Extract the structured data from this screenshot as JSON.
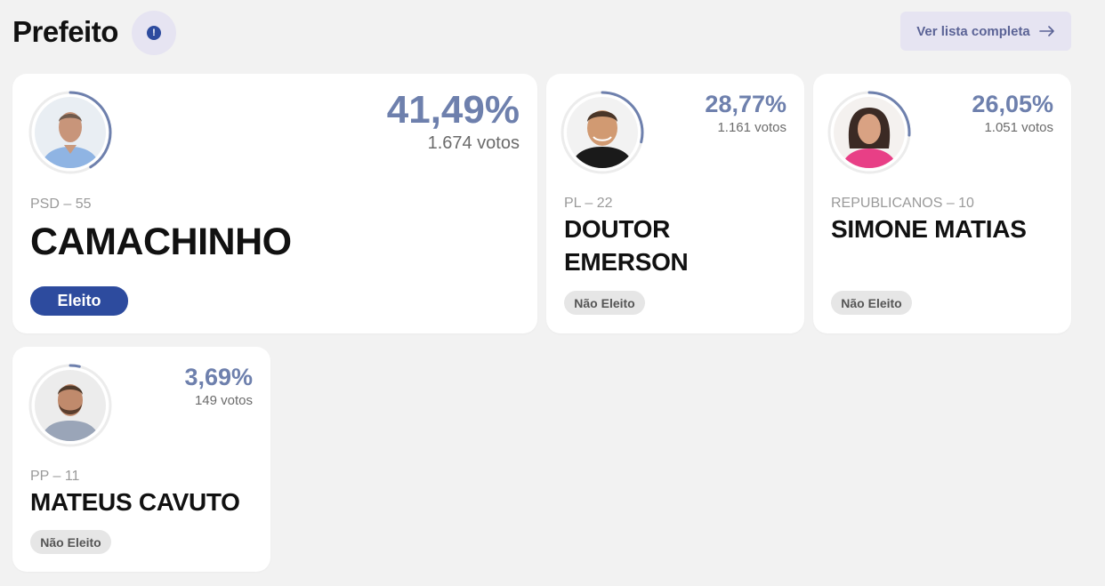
{
  "header": {
    "title": "Prefeito",
    "info_glyph": "!",
    "full_list_label": "Ver lista completa"
  },
  "candidates": [
    {
      "party": "PSD – 55",
      "name": "CAMACHINHO",
      "percent": "41,49%",
      "votes": "1.674 votos",
      "status": "Eleito",
      "share": 0.4149
    },
    {
      "party": "PL – 22",
      "name": "DOUTOR EMERSON",
      "percent": "28,77%",
      "votes": "1.161 votos",
      "status": "Não Eleito",
      "share": 0.2877
    },
    {
      "party": "REPUBLICANOS – 10",
      "name": "SIMONE MATIAS",
      "percent": "26,05%",
      "votes": "1.051 votos",
      "status": "Não Eleito",
      "share": 0.2605
    },
    {
      "party": "PP – 11",
      "name": "MATEUS CAVUTO",
      "percent": "3,69%",
      "votes": "149 votos",
      "status": "Não Eleito",
      "share": 0.0369
    }
  ],
  "colors": {
    "accent": "#2d4b9e",
    "percent": "#6e80ad",
    "ring": "#6e80ad",
    "ring_track": "#ececec"
  }
}
